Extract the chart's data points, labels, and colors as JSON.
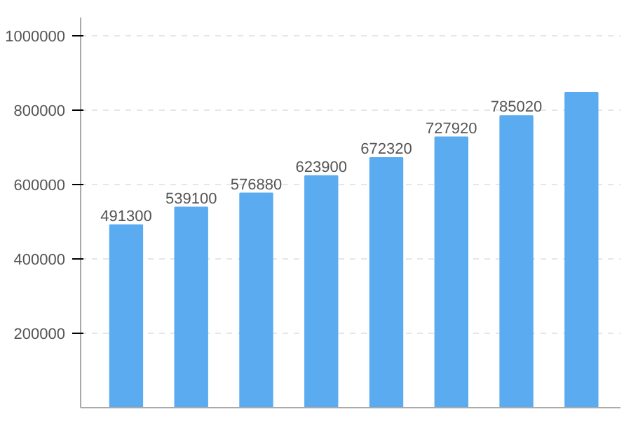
{
  "chart_data": {
    "type": "bar",
    "categories": [
      null,
      null,
      null,
      null,
      null,
      null,
      null,
      null
    ],
    "values": [
      491300,
      539100,
      576880,
      623900,
      672320,
      727920,
      785020,
      848000
    ],
    "value_labels": [
      "491300",
      "539100",
      "576880",
      "623900",
      "672320",
      "727920",
      "785020",
      null
    ],
    "color": "#5aabf0",
    "ylim": [
      0,
      1050000
    ],
    "yticks": [
      200000,
      400000,
      600000,
      800000,
      1000000
    ],
    "grid": "y"
  }
}
